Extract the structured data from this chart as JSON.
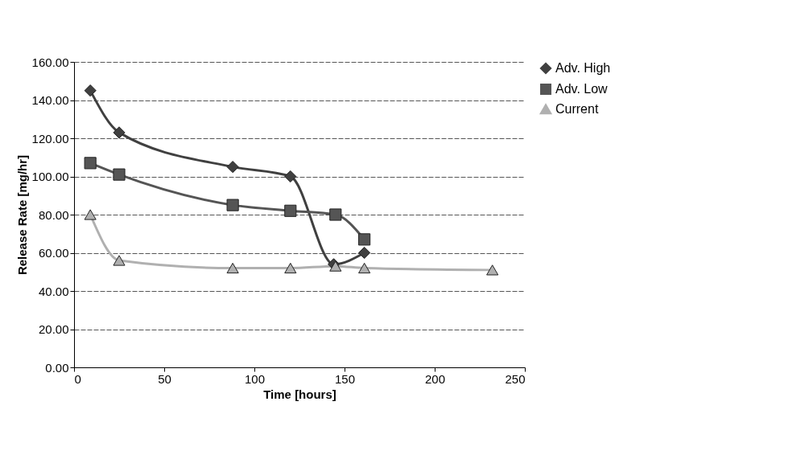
{
  "chart_data": {
    "type": "line",
    "xlabel": "Time [hours]",
    "ylabel": "Release Rate [mg/hr]",
    "xlim": [
      0,
      250
    ],
    "xticks": [
      0,
      50,
      100,
      150,
      200,
      250
    ],
    "ylim": [
      0,
      160
    ],
    "yticks": [
      {
        "value": 0,
        "label": "0.00"
      },
      {
        "value": 20,
        "label": "20.00"
      },
      {
        "value": 40,
        "label": "40.00"
      },
      {
        "value": 60,
        "label": "60.00"
      },
      {
        "value": 80,
        "label": "80.00"
      },
      {
        "value": 100,
        "label": "100.00"
      },
      {
        "value": 120,
        "label": "120.00"
      },
      {
        "value": 140,
        "label": "140.00"
      },
      {
        "value": 160,
        "label": "160.00"
      }
    ],
    "grid": "y",
    "legend": "right",
    "series": [
      {
        "name": "Adv. High",
        "color": "#404040",
        "marker": "diamond",
        "x": [
          9,
          25,
          88,
          120,
          144,
          161
        ],
        "values": [
          145,
          123,
          105,
          100,
          54,
          60
        ]
      },
      {
        "name": "Adv. Low",
        "color": "#555555",
        "marker": "square",
        "x": [
          9,
          25,
          88,
          120,
          145,
          161
        ],
        "values": [
          107,
          101,
          85,
          82,
          80,
          67
        ]
      },
      {
        "name": "Current",
        "color": "#b0b0b0",
        "marker": "triangle",
        "x": [
          9,
          25,
          88,
          120,
          145,
          161,
          232
        ],
        "values": [
          80,
          56,
          52,
          52,
          53,
          52,
          51
        ]
      }
    ]
  }
}
